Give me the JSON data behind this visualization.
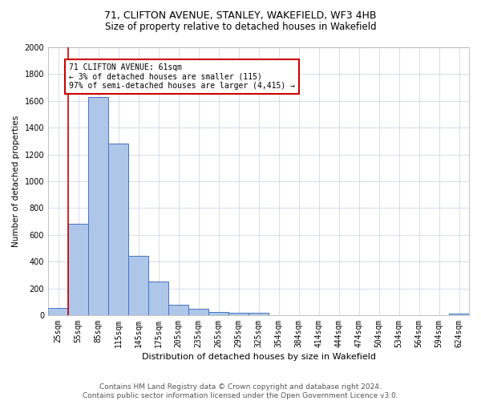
{
  "title1": "71, CLIFTON AVENUE, STANLEY, WAKEFIELD, WF3 4HB",
  "title2": "Size of property relative to detached houses in Wakefield",
  "xlabel": "Distribution of detached houses by size in Wakefield",
  "ylabel": "Number of detached properties",
  "footer": "Contains HM Land Registry data © Crown copyright and database right 2024.\nContains public sector information licensed under the Open Government Licence v3.0.",
  "categories": [
    "25sqm",
    "55sqm",
    "85sqm",
    "115sqm",
    "145sqm",
    "175sqm",
    "205sqm",
    "235sqm",
    "265sqm",
    "295sqm",
    "325sqm",
    "354sqm",
    "384sqm",
    "414sqm",
    "444sqm",
    "474sqm",
    "504sqm",
    "534sqm",
    "564sqm",
    "594sqm",
    "624sqm"
  ],
  "values": [
    55,
    680,
    1630,
    1280,
    440,
    250,
    80,
    45,
    25,
    15,
    20,
    0,
    0,
    0,
    0,
    0,
    0,
    0,
    0,
    0,
    10
  ],
  "bar_color": "#aec6e8",
  "bar_edge_color": "#4472c4",
  "annotation_text": "71 CLIFTON AVENUE: 61sqm\n← 3% of detached houses are smaller (115)\n97% of semi-detached houses are larger (4,415) →",
  "annotation_box_color": "#ffffff",
  "annotation_box_edge": "#cc0000",
  "property_line_color": "#cc0000",
  "ylim": [
    0,
    2000
  ],
  "yticks": [
    0,
    200,
    400,
    600,
    800,
    1000,
    1200,
    1400,
    1600,
    1800,
    2000
  ],
  "grid_color": "#d0d8e8",
  "bg_color": "#ffffff",
  "title1_fontsize": 9,
  "title2_fontsize": 8.5,
  "xlabel_fontsize": 8,
  "ylabel_fontsize": 7.5,
  "footer_fontsize": 6.5,
  "tick_fontsize": 7,
  "annot_fontsize": 7
}
